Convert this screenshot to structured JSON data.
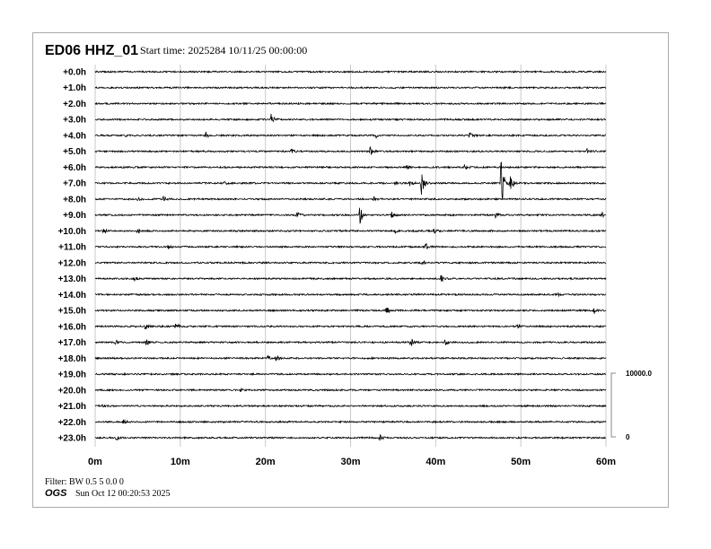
{
  "chart_data": {
    "type": "line",
    "title": "ED06 HHZ_01",
    "subtitle": "Start time: 2025284 10/11/25 00:00:00",
    "row_labels": [
      "+0.0h",
      "+1.0h",
      "+2.0h",
      "+3.0h",
      "+4.0h",
      "+5.0h",
      "+6.0h",
      "+7.0h",
      "+8.0h",
      "+9.0h",
      "+10.0h",
      "+11.0h",
      "+12.0h",
      "+13.0h",
      "+14.0h",
      "+15.0h",
      "+16.0h",
      "+17.0h",
      "+18.0h",
      "+19.0h",
      "+20.0h",
      "+21.0h",
      "+22.0h",
      "+23.0h"
    ],
    "x_ticks": [
      "0m",
      "10m",
      "20m",
      "30m",
      "40m",
      "50m",
      "60m"
    ],
    "xlim": [
      0,
      60
    ],
    "grid": true,
    "amplitude_scale": {
      "top_label": "10000.0",
      "bottom_label": "0",
      "range_counts": [
        0,
        10000
      ]
    },
    "noise_counts": 120,
    "events": [
      {
        "hour": 3,
        "minute": 20.7,
        "amp": 1000
      },
      {
        "hour": 4,
        "minute": 3.5,
        "amp": 300
      },
      {
        "hour": 4,
        "minute": 13,
        "amp": 500
      },
      {
        "hour": 4,
        "minute": 33,
        "amp": 400
      },
      {
        "hour": 4,
        "minute": 44,
        "amp": 500
      },
      {
        "hour": 5,
        "minute": 23,
        "amp": 350
      },
      {
        "hour": 5,
        "minute": 32.3,
        "amp": 700
      },
      {
        "hour": 5,
        "minute": 57.8,
        "amp": 350
      },
      {
        "hour": 6,
        "minute": 36.6,
        "amp": 300
      },
      {
        "hour": 6,
        "minute": 43.4,
        "amp": 400
      },
      {
        "hour": 7,
        "minute": 15.2,
        "amp": 300
      },
      {
        "hour": 7,
        "minute": 35.2,
        "amp": 300
      },
      {
        "hour": 7,
        "minute": 37,
        "amp": 500
      },
      {
        "hour": 7,
        "minute": 38.3,
        "amp": 2200
      },
      {
        "hour": 7,
        "minute": 47.7,
        "amp": 4500
      },
      {
        "hour": 7,
        "minute": 48.8,
        "amp": 1500
      },
      {
        "hour": 8,
        "minute": 5,
        "amp": 300
      },
      {
        "hour": 8,
        "minute": 8,
        "amp": 500
      },
      {
        "hour": 8,
        "minute": 32.7,
        "amp": 400
      },
      {
        "hour": 9,
        "minute": 23.7,
        "amp": 600
      },
      {
        "hour": 9,
        "minute": 31.1,
        "amp": 1500
      },
      {
        "hour": 9,
        "minute": 34.8,
        "amp": 600
      },
      {
        "hour": 9,
        "minute": 47,
        "amp": 500
      },
      {
        "hour": 9,
        "minute": 59.5,
        "amp": 400
      },
      {
        "hour": 10,
        "minute": 1,
        "amp": 400
      },
      {
        "hour": 10,
        "minute": 5,
        "amp": 400
      },
      {
        "hour": 10,
        "minute": 35.2,
        "amp": 300
      },
      {
        "hour": 10,
        "minute": 39.8,
        "amp": 400
      },
      {
        "hour": 11,
        "minute": 8.6,
        "amp": 300
      },
      {
        "hour": 11,
        "minute": 38.8,
        "amp": 600
      },
      {
        "hour": 12,
        "minute": 38.4,
        "amp": 400
      },
      {
        "hour": 13,
        "minute": 4.6,
        "amp": 400
      },
      {
        "hour": 13,
        "minute": 40.6,
        "amp": 600
      },
      {
        "hour": 14,
        "minute": 54.2,
        "amp": 400
      },
      {
        "hour": 15,
        "minute": 34.2,
        "amp": 800
      },
      {
        "hour": 15,
        "minute": 58.6,
        "amp": 500
      },
      {
        "hour": 16,
        "minute": 5.9,
        "amp": 700
      },
      {
        "hour": 16,
        "minute": 9.5,
        "amp": 800
      },
      {
        "hour": 16,
        "minute": 49.6,
        "amp": 500
      },
      {
        "hour": 17,
        "minute": 2.4,
        "amp": 500
      },
      {
        "hour": 17,
        "minute": 6,
        "amp": 600
      },
      {
        "hour": 17,
        "minute": 37,
        "amp": 900
      },
      {
        "hour": 17,
        "minute": 41.1,
        "amp": 600
      },
      {
        "hour": 18,
        "minute": 20.3,
        "amp": 400
      },
      {
        "hour": 18,
        "minute": 21.3,
        "amp": 500
      },
      {
        "hour": 20,
        "minute": 17.1,
        "amp": 300
      },
      {
        "hour": 21,
        "minute": 0.8,
        "amp": 300
      },
      {
        "hour": 22,
        "minute": 3.3,
        "amp": 300
      },
      {
        "hour": 23,
        "minute": 2.4,
        "amp": 500
      },
      {
        "hour": 23,
        "minute": 33.4,
        "amp": 500
      }
    ]
  },
  "footer": {
    "filter": "Filter: BW 0.5 5 0.0 0",
    "org": "OGS",
    "timestamp": "Sun Oct 12 00:20:53 2025"
  },
  "colors": {
    "trace": "#000000",
    "grid": "#c8c8c8",
    "frame": "#aaaaaa"
  }
}
